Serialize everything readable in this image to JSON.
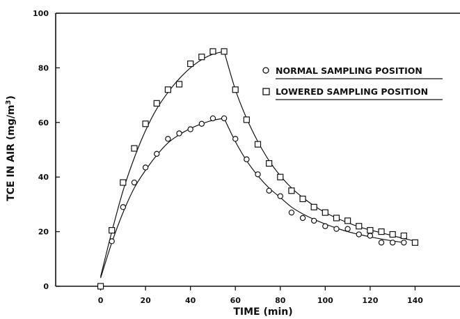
{
  "chart_data": {
    "type": "scatter",
    "xlabel": "TIME (min)",
    "ylabel": "TCE IN AIR (mg/m³)",
    "ylabel_parts": {
      "main": "TCE IN AIR (mg/m",
      "sup": "3",
      "close": ")"
    },
    "xlim": [
      -20,
      160
    ],
    "ylim": [
      0,
      100
    ],
    "x_ticks": [
      0,
      20,
      40,
      60,
      80,
      100,
      120,
      140
    ],
    "y_ticks": [
      0,
      20,
      40,
      60,
      80,
      100
    ],
    "grid": false,
    "legend_position": "upper-right",
    "series": [
      {
        "name": "NORMAL SAMPLING POSITION",
        "marker": "circle",
        "x": [
          0,
          5,
          10,
          15,
          20,
          25,
          30,
          35,
          40,
          45,
          50,
          55,
          60,
          65,
          70,
          75,
          80,
          85,
          90,
          95,
          100,
          105,
          110,
          115,
          120,
          125,
          130,
          135
        ],
        "y": [
          0,
          16.5,
          29,
          38,
          43.5,
          48.5,
          54,
          56,
          57.5,
          59.5,
          61.5,
          61.5,
          54,
          46.5,
          41,
          35,
          33,
          27,
          25,
          24,
          22,
          21,
          21,
          19,
          18.5,
          16,
          16,
          16
        ]
      },
      {
        "name": "LOWERED SAMPLING POSITION",
        "marker": "square",
        "x": [
          0,
          5,
          10,
          15,
          20,
          25,
          30,
          35,
          40,
          45,
          50,
          55,
          60,
          65,
          70,
          75,
          80,
          85,
          90,
          95,
          100,
          105,
          110,
          115,
          120,
          125,
          130,
          135,
          140
        ],
        "y": [
          0,
          20.5,
          38,
          50.5,
          59.5,
          67,
          72,
          74,
          81.5,
          84,
          86,
          86,
          72,
          61,
          52,
          45,
          40,
          35,
          32,
          29,
          27,
          25,
          24,
          22,
          20.5,
          20,
          19,
          18.5,
          16
        ]
      }
    ],
    "fit_curves": [
      {
        "series": "NORMAL SAMPLING POSITION",
        "x": [
          0,
          5,
          10,
          15,
          20,
          25,
          30,
          35,
          40,
          45,
          50,
          55,
          60,
          65,
          70,
          75,
          80,
          85,
          90,
          95,
          100,
          105,
          110,
          115,
          120,
          125,
          130,
          135
        ],
        "y": [
          3,
          16,
          27,
          36,
          42.5,
          48,
          52.5,
          55.5,
          57.8,
          59.5,
          60.8,
          61.5,
          53,
          46,
          40.5,
          36,
          32.5,
          29,
          26.5,
          24.5,
          22.8,
          21.3,
          20,
          19,
          18.1,
          17.3,
          16.6,
          16
        ]
      },
      {
        "series": "LOWERED SAMPLING POSITION",
        "x": [
          0,
          5,
          10,
          15,
          20,
          25,
          30,
          35,
          40,
          45,
          50,
          55,
          60,
          65,
          70,
          75,
          80,
          85,
          90,
          95,
          100,
          105,
          110,
          115,
          120,
          125,
          130,
          135,
          140
        ],
        "y": [
          3.5,
          20,
          35,
          47,
          57,
          65,
          71,
          76,
          80,
          83,
          85,
          86,
          72,
          61.5,
          53,
          46,
          40.5,
          36,
          32.5,
          29.5,
          27,
          25,
          23.3,
          21.8,
          20.6,
          19.6,
          18.5,
          17.5,
          16.5
        ]
      }
    ]
  }
}
